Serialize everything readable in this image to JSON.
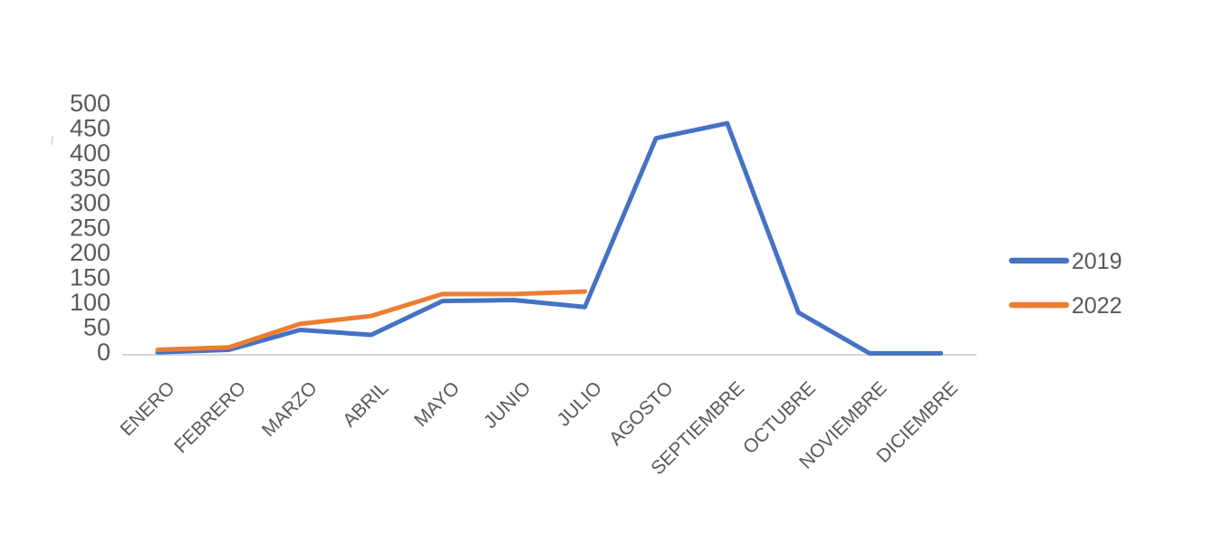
{
  "chart_data": {
    "type": "line",
    "title": "",
    "xlabel": "",
    "ylabel": "",
    "categories": [
      "ENERO",
      "FEBRERO",
      "MARZO",
      "ABRIL",
      "MAYO",
      "JUNIO",
      "JULIO",
      "AGOSTO",
      "SEPTIEMBRE",
      "OCTUBRE",
      "NOVIEMBRE",
      "DICIEMBRE"
    ],
    "series": [
      {
        "name": "2019",
        "color": "#4472C4",
        "values": [
          5,
          10,
          50,
          40,
          108,
          110,
          96,
          435,
          465,
          85,
          3,
          3
        ]
      },
      {
        "name": "2022",
        "color": "#ED7D31",
        "values": [
          10,
          15,
          62,
          78,
          122,
          122,
          127,
          null,
          null,
          null,
          null,
          null
        ]
      }
    ],
    "y_axis": {
      "min": 0,
      "max": 500,
      "step": 50,
      "ticks": [
        0,
        50,
        100,
        150,
        200,
        250,
        300,
        350,
        400,
        450,
        500
      ]
    },
    "legend": {
      "position": "right",
      "entries": [
        "2019",
        "2022"
      ]
    },
    "grid": "off",
    "axis_line_color": "#D6D6D6",
    "label_color": "#5a5a5a",
    "background": "#ffffff"
  }
}
